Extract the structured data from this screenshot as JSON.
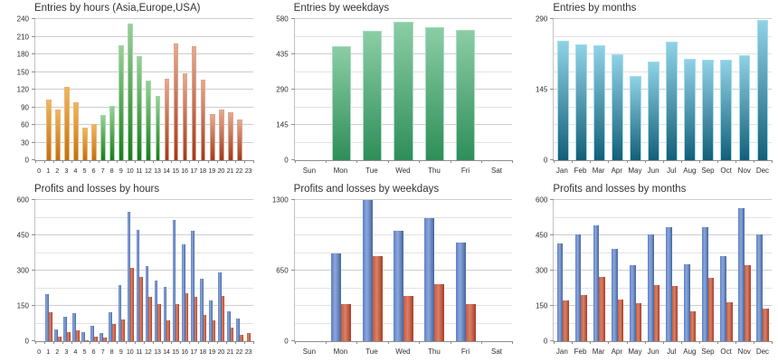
{
  "dashboard": {
    "background": "#ffffff",
    "grid_columns": 3,
    "grid_rows": 2
  },
  "colors": {
    "title_text": "#333333",
    "tick_text": "#2e2e2e",
    "axis_line": "#8e8e8e",
    "y_axis_line": "#c2c2c2",
    "gridline_major": "#cdcdcd",
    "gridline_minor": "#e2e2e2"
  },
  "palettes": {
    "orange": {
      "direction": "vertical",
      "top": "#f2b65c",
      "bottom": "#c17013",
      "border": "#e9b573"
    },
    "green1": {
      "direction": "vertical",
      "top": "#98d099",
      "bottom": "#1b7c1e",
      "border": "#a6d9a7"
    },
    "red1": {
      "direction": "vertical",
      "top": "#e7a98f",
      "bottom": "#a03a20",
      "border": "#dba68f"
    },
    "green2": {
      "direction": "vertical",
      "top": "#8bcda5",
      "bottom": "#2e8e59",
      "border": "#a9ddbf"
    },
    "teal": {
      "direction": "vertical",
      "top": "#8fd2e6",
      "bottom": "#135f79",
      "border": "#a6dceb"
    },
    "blue": {
      "direction": "horizontal",
      "left": "#5e81c4",
      "mid": "#8ca6db",
      "right": "#44679e"
    },
    "redp": {
      "direction": "horizontal",
      "left": "#c75a41",
      "mid": "#da8166",
      "right": "#a83c27"
    }
  },
  "chart_data": [
    {
      "type": "bar",
      "title": "Entries by hours (Asia,Europe,USA)",
      "categories": [
        "0",
        "1",
        "2",
        "3",
        "4",
        "5",
        "6",
        "7",
        "8",
        "9",
        "10",
        "11",
        "12",
        "13",
        "14",
        "15",
        "16",
        "17",
        "18",
        "19",
        "20",
        "21",
        "22",
        "23"
      ],
      "ylim": [
        0,
        240
      ],
      "yticks": [
        0,
        30,
        60,
        90,
        120,
        150,
        180,
        210,
        240
      ],
      "grid_step": 30,
      "grid": true,
      "legend": "none",
      "bar_width_pct": 58,
      "dense_labels": true,
      "series": [
        {
          "name": "entries",
          "values": [
            0,
            103,
            86,
            124,
            98,
            55,
            61,
            77,
            93,
            195,
            232,
            177,
            136,
            109,
            139,
            199,
            148,
            194,
            137,
            79,
            86,
            82,
            69,
            0
          ],
          "bar_palettes": [
            "orange",
            "orange",
            "orange",
            "orange",
            "orange",
            "orange",
            "orange",
            "green1",
            "green1",
            "green1",
            "green1",
            "green1",
            "green1",
            "green1",
            "red1",
            "red1",
            "red1",
            "red1",
            "red1",
            "red1",
            "red1",
            "red1",
            "red1",
            "red1"
          ]
        }
      ]
    },
    {
      "type": "bar",
      "title": "Entries by weekdays",
      "categories": [
        "Sun",
        "Mon",
        "Tue",
        "Wed",
        "Thu",
        "Fri",
        "Sat"
      ],
      "ylim": [
        0,
        580
      ],
      "yticks": [
        0,
        145,
        290,
        435,
        580
      ],
      "grid_step": 72.5,
      "grid": true,
      "legend": "none",
      "bar_width_pct": 62,
      "dense_labels": false,
      "series": [
        {
          "name": "entries",
          "palette": "green2",
          "values": [
            0,
            470,
            530,
            568,
            546,
            537,
            0
          ]
        }
      ]
    },
    {
      "type": "bar",
      "title": "Entries by months",
      "categories": [
        "Jan",
        "Feb",
        "Mar",
        "Apr",
        "May",
        "Jun",
        "Jul",
        "Aug",
        "Sep",
        "Oct",
        "Nov",
        "Dec"
      ],
      "ylim": [
        0,
        290
      ],
      "yticks": [
        0,
        145,
        290
      ],
      "grid_step": 36.25,
      "grid": true,
      "legend": "none",
      "bar_width_pct": 64,
      "dense_labels": false,
      "series": [
        {
          "name": "entries",
          "palette": "teal",
          "values": [
            245,
            238,
            236,
            217,
            173,
            202,
            243,
            209,
            207,
            206,
            216,
            288
          ]
        }
      ]
    },
    {
      "type": "bar",
      "title": "Profits and losses by hours",
      "categories": [
        "0",
        "1",
        "2",
        "3",
        "4",
        "5",
        "6",
        "7",
        "8",
        "9",
        "10",
        "11",
        "12",
        "13",
        "14",
        "15",
        "16",
        "17",
        "18",
        "19",
        "20",
        "21",
        "22",
        "23"
      ],
      "ylim": [
        0,
        600
      ],
      "yticks": [
        0,
        150,
        300,
        450,
        600
      ],
      "grid_step": 75,
      "grid": true,
      "legend": "none",
      "bar_width_pct": 38,
      "dense_labels": true,
      "series": [
        {
          "name": "profits",
          "palette": "blue",
          "values": [
            0,
            200,
            50,
            103,
            118,
            38,
            65,
            35,
            125,
            240,
            550,
            475,
            319,
            259,
            230,
            517,
            411,
            468,
            265,
            175,
            292,
            127,
            97,
            0
          ]
        },
        {
          "name": "losses",
          "palette": "redp",
          "values": [
            0,
            125,
            18,
            38,
            47,
            5,
            20,
            15,
            75,
            93,
            310,
            275,
            190,
            158,
            88,
            158,
            205,
            187,
            112,
            87,
            191,
            56,
            28,
            35
          ]
        }
      ]
    },
    {
      "type": "bar",
      "title": "Profits and losses by weekdays",
      "categories": [
        "Sun",
        "Mon",
        "Tue",
        "Wed",
        "Thu",
        "Fri",
        "Sat"
      ],
      "ylim": [
        0,
        1300
      ],
      "yticks": [
        0,
        650,
        1300
      ],
      "grid_step": 162.5,
      "grid": true,
      "legend": "none",
      "bar_width_pct": 32,
      "dense_labels": false,
      "series": [
        {
          "name": "profits",
          "palette": "blue",
          "values": [
            0,
            809,
            1300,
            1018,
            1130,
            905,
            0
          ]
        },
        {
          "name": "losses",
          "palette": "redp",
          "values": [
            0,
            338,
            780,
            415,
            527,
            341,
            0
          ]
        }
      ]
    },
    {
      "type": "bar",
      "title": "Profits and losses by months",
      "categories": [
        "Jan",
        "Feb",
        "Mar",
        "Apr",
        "May",
        "Jun",
        "Jul",
        "Aug",
        "Sep",
        "Oct",
        "Nov",
        "Dec"
      ],
      "ylim": [
        0,
        600
      ],
      "yticks": [
        0,
        150,
        300,
        450,
        600
      ],
      "grid_step": 75,
      "grid": true,
      "legend": "none",
      "bar_width_pct": 33,
      "dense_labels": false,
      "series": [
        {
          "name": "profits",
          "palette": "blue",
          "values": [
            415,
            452,
            494,
            391,
            323,
            452,
            486,
            326,
            484,
            361,
            565,
            452
          ]
        },
        {
          "name": "losses",
          "palette": "redp",
          "values": [
            174,
            196,
            273,
            178,
            161,
            239,
            236,
            126,
            271,
            165,
            323,
            138
          ]
        }
      ]
    }
  ]
}
